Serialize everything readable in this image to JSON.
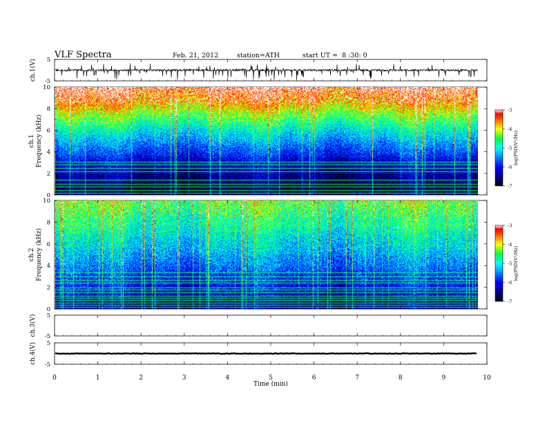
{
  "header": {
    "title": "VLF Spectra",
    "date": "Feb. 21, 2012",
    "station": "station=ATH",
    "start": "start UT =  8 :30: 0"
  },
  "chart_data": [
    {
      "type": "line",
      "panel": "ch1-waveform",
      "ylabel": "ch.1(V)",
      "ylim": [
        -5,
        5
      ],
      "yticks": [
        "5",
        "-5"
      ],
      "xlim": [
        0,
        10
      ],
      "baseline": 0,
      "series_color": "#000000"
    },
    {
      "type": "heatmap",
      "panel": "ch1-spectrogram",
      "ylabel_lines": [
        "ch.1",
        "Frequency  (kHz)"
      ],
      "ylim": [
        0,
        10
      ],
      "yticks": [
        "0",
        "2",
        "4",
        "6",
        "8",
        "10"
      ],
      "xlim": [
        0,
        9.8
      ],
      "colorbar": {
        "label": "log(PSD(V²/Hz)",
        "range": [
          -7,
          -3
        ],
        "ticks": [
          "-3",
          "-4",
          "-5",
          "-6",
          "-7"
        ]
      }
    },
    {
      "type": "heatmap",
      "panel": "ch2-spectrogram",
      "ylabel_lines": [
        "ch.2",
        "Frequency  (kHz)"
      ],
      "ylim": [
        0,
        10
      ],
      "yticks": [
        "0",
        "2",
        "4",
        "6",
        "8",
        "10"
      ],
      "xlim": [
        0,
        9.8
      ],
      "colorbar": {
        "label": "log(PSD(V²/Hz)",
        "range": [
          -7,
          -3
        ],
        "ticks": [
          "-3",
          "-4",
          "-5",
          "-6",
          "-7"
        ]
      }
    },
    {
      "type": "line",
      "panel": "ch3-waveform",
      "ylabel": "ch.3(V)",
      "ylim": [
        -5,
        5
      ],
      "yticks": [
        "5",
        "-5"
      ],
      "xlim": [
        0,
        10
      ]
    },
    {
      "type": "line",
      "panel": "ch4-waveform",
      "ylabel": "ch.4(V)",
      "ylim": [
        -5,
        5
      ],
      "yticks": [
        "5",
        "-5"
      ],
      "xlim": [
        0,
        10
      ],
      "baseline": 0
    }
  ],
  "xaxis": {
    "label": "Time  (min)",
    "ticks": [
      "0",
      "1",
      "2",
      "3",
      "4",
      "5",
      "6",
      "7",
      "8",
      "9",
      "10"
    ],
    "range": [
      0,
      10
    ]
  }
}
